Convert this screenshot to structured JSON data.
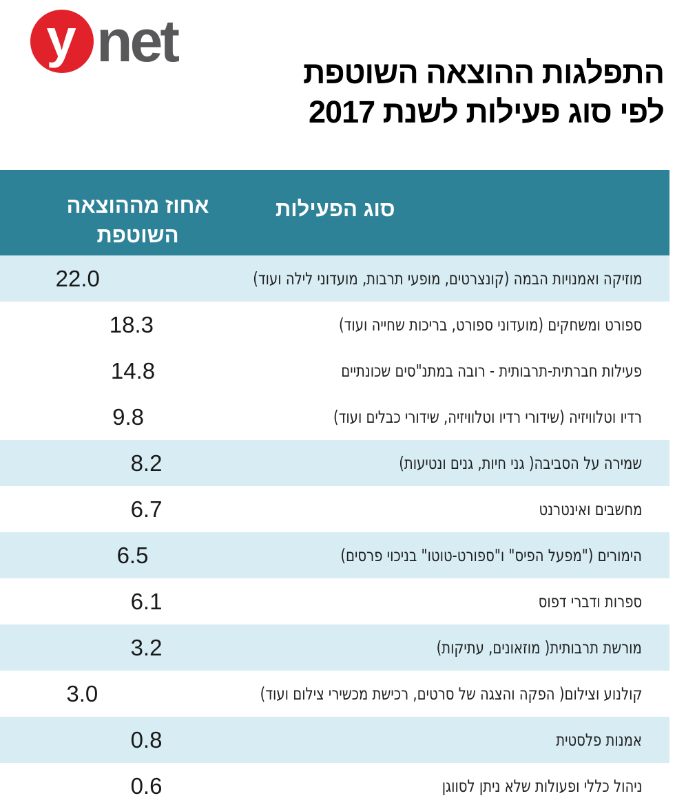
{
  "logo": {
    "y": "y",
    "net": "net"
  },
  "title": {
    "line1": "התפלגות ההוצאה השוטפת",
    "line2": "לפי סוג פעילות לשנת 2017"
  },
  "table": {
    "header": {
      "value_line1": "אחוז מההוצאה",
      "value_line2": "השוטפת",
      "activity": "סוג הפעילות"
    },
    "rows": [
      {
        "activity": "מוזיקה ואמנויות הבמה (קונצרטים, מופעי תרבות, מועדוני לילה ועוד)",
        "value": "22.0"
      },
      {
        "activity": "ספורט ומשחקים (מועדוני ספורט, בריכות שחייה ועוד)",
        "value": "18.3"
      },
      {
        "activity": "פעילות חברתית-תרבותית - רובה במתנ\"סים שכונתיים",
        "value": "14.8"
      },
      {
        "activity": "רדיו וטלוויזיה (שידורי רדיו וטלוויזיה, שידורי כבלים ועוד)",
        "value": "9.8"
      },
      {
        "activity": "שמירה על הסביבה( גני חיות, גנים ונטיעות)",
        "value": "8.2"
      },
      {
        "activity": "מחשבים ואינטרנט",
        "value": "6.7"
      },
      {
        "activity": "הימורים (\"מפעל הפיס\" ו\"ספורט-טוטו\" בניכוי פרסים)",
        "value": "6.5"
      },
      {
        "activity": "ספרות ודברי דפוס",
        "value": "6.1"
      },
      {
        "activity": "מורשת תרבותית( מוזאונים, עתיקות)",
        "value": "3.2"
      },
      {
        "activity": "קולנוע וצילום( הפקה והצגה של סרטים, רכישת מכשירי צילום ועוד)",
        "value": "3.0"
      },
      {
        "activity": "אמנות פלסטית",
        "value": "0.8"
      },
      {
        "activity": "ניהול כללי ופעולות שלא ניתן לסווגן",
        "value": "0.6"
      }
    ]
  },
  "colors": {
    "header_teal": "#2E8298",
    "row_stripe_blue": "#D8EDF3",
    "logo_red": "#E2222A",
    "logo_net_gray": "#58585A",
    "title_black": "#000000",
    "row_text": "#1E1E1E"
  },
  "chart_data": {
    "type": "table",
    "title": "התפלגות ההוצאה השוטפת לפי סוג פעילות לשנת 2017",
    "columns": [
      "סוג הפעילות",
      "אחוז מההוצאה השוטפת"
    ],
    "categories": [
      "מוזיקה ואמנויות הבמה (קונצרטים, מופעי תרבות, מועדוני לילה ועוד)",
      "ספורט ומשחקים (מועדוני ספורט, בריכות שחייה ועוד)",
      "פעילות חברתית-תרבותית - רובה במתנ\"סים שכונתיים",
      "רדיו וטלוויזיה (שידורי רדיו וטלוויזיה, שידורי כבלים ועוד)",
      "שמירה על הסביבה (גני חיות, גנים ונטיעות)",
      "מחשבים ואינטרנט",
      "הימורים (\"מפעל הפיס\" ו\"ספורט-טוטו\" בניכוי פרסים)",
      "ספרות ודברי דפוס",
      "מורשת תרבותית (מוזאונים, עתיקות)",
      "קולנוע וצילום (הפקה והצגה של סרטים, רכישת מכשירי צילום ועוד)",
      "אמנות פלסטית",
      "ניהול כללי ופעולות שלא ניתן לסווגן"
    ],
    "values": [
      22.0,
      18.3,
      14.8,
      9.8,
      8.2,
      6.7,
      6.5,
      6.1,
      3.2,
      3.0,
      0.8,
      0.6
    ]
  }
}
